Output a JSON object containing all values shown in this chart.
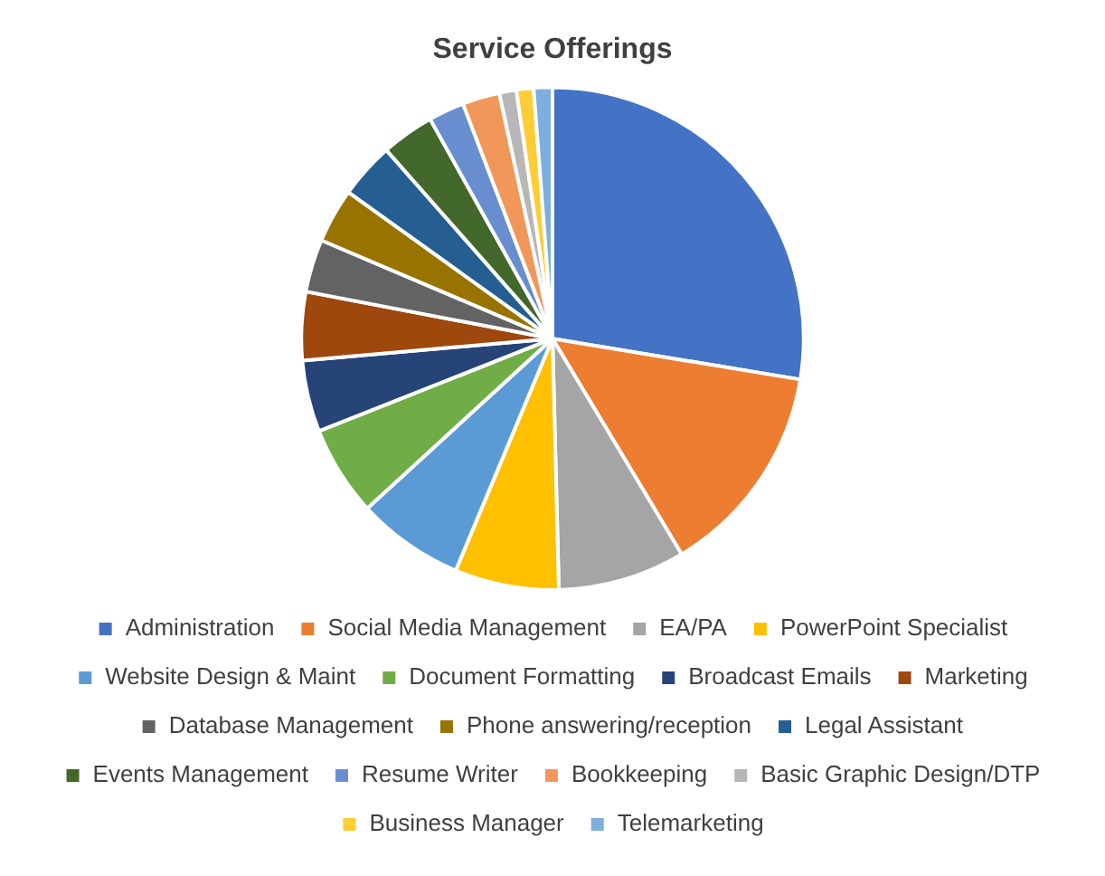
{
  "chart_data": {
    "type": "pie",
    "title": "Service Offerings",
    "categories": [
      "Administration",
      "Social Media Management",
      "EA/PA",
      "PowerPoint Specialist",
      "Website Design & Maint",
      "Document Formatting",
      "Broadcast Emails",
      "Marketing",
      "Database Management",
      "Phone answering/reception",
      "Legal Assistant",
      "Events Management",
      "Resume Writer",
      "Bookkeeping",
      "Basic Graphic Design/DTP",
      "Business Manager",
      "Telemarketing"
    ],
    "values": [
      27.6,
      13.8,
      8.2,
      6.7,
      6.9,
      5.8,
      4.6,
      4.4,
      3.4,
      3.5,
      3.6,
      3.4,
      2.3,
      2.4,
      1.1,
      1.1,
      1.2
    ],
    "colors": [
      "#4472c4",
      "#ed7d31",
      "#a5a5a5",
      "#ffc000",
      "#5b9bd5",
      "#70ad47",
      "#264478",
      "#9e480e",
      "#636363",
      "#997300",
      "#255e91",
      "#43682b",
      "#698ed0",
      "#f1975a",
      "#b7b7b7",
      "#ffcd33",
      "#7cafdd"
    ],
    "legend": "bottom"
  }
}
